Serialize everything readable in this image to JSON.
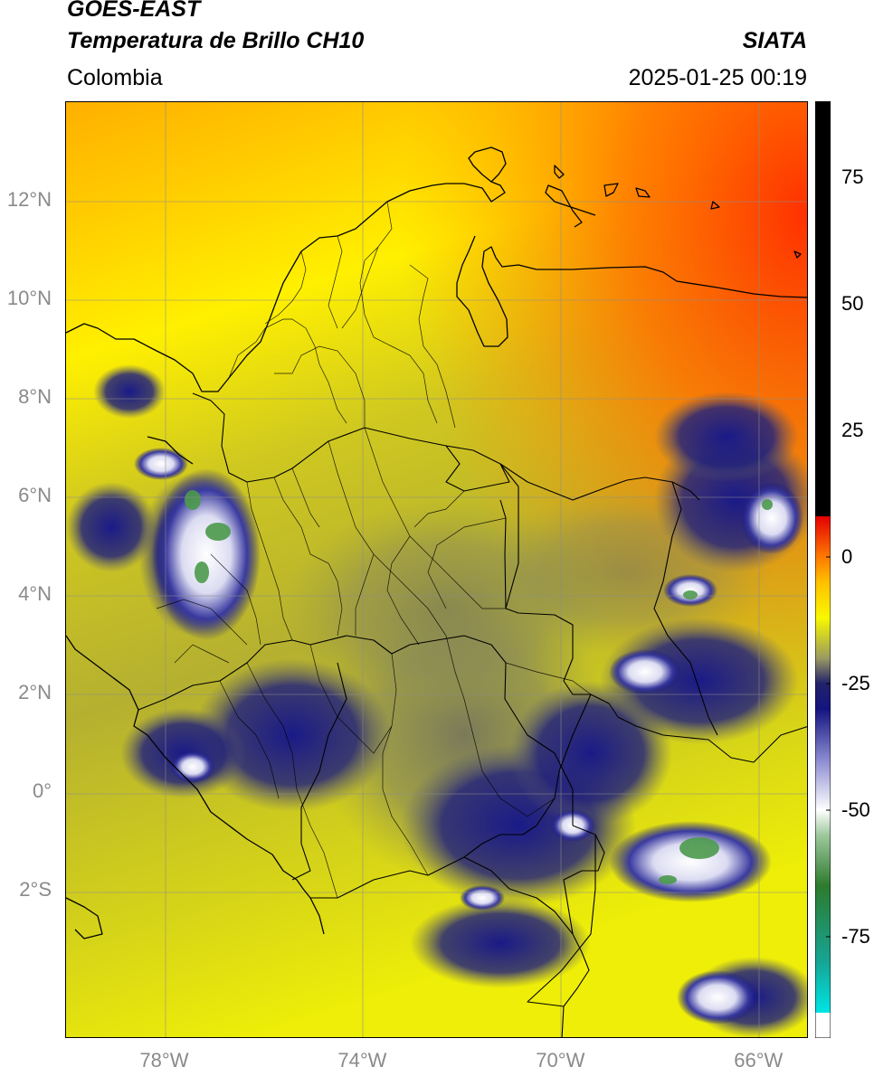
{
  "header": {
    "satellite": "GOES-EAST",
    "product": "Temperatura de Brillo CH10",
    "organization": "SIATA",
    "region": "Colombia",
    "datetime": "2025-01-25 00:19"
  },
  "map": {
    "lon_range": [
      -80,
      -65
    ],
    "lat_range": [
      -5,
      14
    ],
    "lat_ticks": [
      {
        "value": 12,
        "label": "12°N"
      },
      {
        "value": 10,
        "label": "10°N"
      },
      {
        "value": 8,
        "label": "8°N"
      },
      {
        "value": 6,
        "label": "6°N"
      },
      {
        "value": 4,
        "label": "4°N"
      },
      {
        "value": 2,
        "label": "2°N"
      },
      {
        "value": 0,
        "label": "0°"
      },
      {
        "value": -2,
        "label": "2°S"
      }
    ],
    "lon_ticks": [
      {
        "value": -78,
        "label": "78°W"
      },
      {
        "value": -74,
        "label": "74°W"
      },
      {
        "value": -70,
        "label": "70°W"
      },
      {
        "value": -66,
        "label": "66°W"
      }
    ],
    "grid": true,
    "border_color": "#000000"
  },
  "colorbar": {
    "range": [
      -95,
      90
    ],
    "ticks": [
      {
        "value": 75,
        "label": "75"
      },
      {
        "value": 50,
        "label": "50"
      },
      {
        "value": 25,
        "label": "25"
      },
      {
        "value": 0,
        "label": "0"
      },
      {
        "value": -25,
        "label": "-25"
      },
      {
        "value": -50,
        "label": "-50"
      },
      {
        "value": -75,
        "label": "-75"
      }
    ],
    "stops": [
      {
        "value": -95,
        "color": "#ffffff"
      },
      {
        "value": -90,
        "color": "#ffffff"
      },
      {
        "value": -90,
        "color": "#00e5e5"
      },
      {
        "value": -80,
        "color": "#16a595"
      },
      {
        "value": -65,
        "color": "#2d7a2d"
      },
      {
        "value": -55,
        "color": "#9cc89c"
      },
      {
        "value": -50,
        "color": "#ffffff"
      },
      {
        "value": -40,
        "color": "#8a8ad0"
      },
      {
        "value": -30,
        "color": "#141480"
      },
      {
        "value": -25,
        "color": "#22226a"
      },
      {
        "value": -20,
        "color": "#9a9a62"
      },
      {
        "value": -12,
        "color": "#f8f800"
      },
      {
        "value": -5,
        "color": "#ffc000"
      },
      {
        "value": 0,
        "color": "#ff7a00"
      },
      {
        "value": 8,
        "color": "#e30000"
      },
      {
        "value": 8,
        "color": "#000000"
      },
      {
        "value": 90,
        "color": "#000000"
      }
    ]
  }
}
